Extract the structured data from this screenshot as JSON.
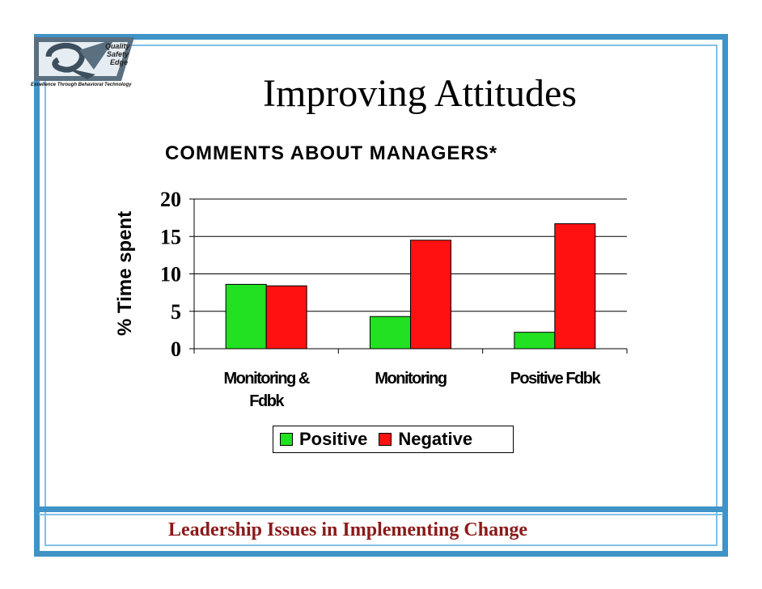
{
  "slide": {
    "title": "Improving Attitudes",
    "footer": "Leadership Issues in Implementing Change",
    "logo": {
      "words": [
        "Quality",
        "Safety",
        "Edge"
      ],
      "tagline": "Excellence Through Behavioral Technology"
    },
    "colors": {
      "frame": "#3f93c6",
      "frame_inner": "#7fc0e6",
      "footer_text": "#8b1a1a"
    }
  },
  "chart_data": {
    "type": "bar",
    "title": "COMMENTS ABOUT MANAGERS*",
    "ylabel": "% Time spent",
    "xlabel": "",
    "ylim": [
      0,
      20
    ],
    "yticks": [
      "0",
      "5",
      "10",
      "15",
      "20"
    ],
    "categories": [
      [
        "Monitoring &",
        "Fdbk"
      ],
      [
        "Monitoring"
      ],
      [
        "Positive Fdbk"
      ]
    ],
    "series": [
      {
        "name": "Positive",
        "color": "#22e022",
        "values": [
          8.6,
          4.3,
          2.2
        ]
      },
      {
        "name": "Negative",
        "color": "#ff1111",
        "values": [
          8.4,
          14.5,
          16.7
        ]
      }
    ],
    "grid": true,
    "legend_position": "bottom"
  }
}
